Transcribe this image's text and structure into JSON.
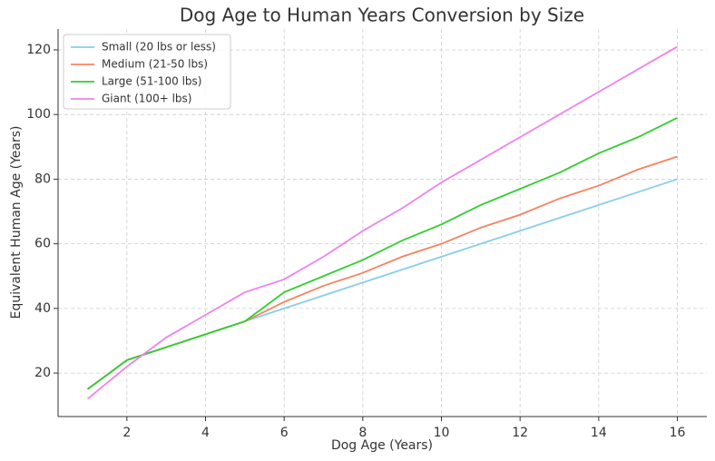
{
  "chart_data": {
    "type": "line",
    "title": "Dog Age to Human Years Conversion by Size",
    "x_label": "Dog Age (Years)",
    "y_label": "Equivalent Human Age (Years)",
    "x": [
      1,
      2,
      3,
      4,
      5,
      6,
      7,
      8,
      9,
      10,
      11,
      12,
      13,
      14,
      15,
      16
    ],
    "series": [
      {
        "name": "Small (20 lbs or less)",
        "color": "#87ceeb",
        "values": [
          15,
          24,
          28,
          32,
          36,
          40,
          44,
          48,
          52,
          56,
          60,
          64,
          68,
          72,
          76,
          80
        ]
      },
      {
        "name": "Medium (21-50 lbs)",
        "color": "#f4845f",
        "values": [
          15,
          24,
          28,
          32,
          36,
          42,
          47,
          51,
          56,
          60,
          65,
          69,
          74,
          78,
          83,
          87
        ]
      },
      {
        "name": "Large (51-100 lbs)",
        "color": "#32cd32",
        "values": [
          15,
          24,
          28,
          32,
          36,
          45,
          50,
          55,
          61,
          66,
          72,
          77,
          82,
          88,
          93,
          99
        ]
      },
      {
        "name": "Giant (100+ lbs)",
        "color": "#ee82ee",
        "values": [
          12,
          22,
          31,
          38,
          45,
          49,
          56,
          64,
          71,
          79,
          86,
          93,
          100,
          107,
          114,
          121
        ]
      }
    ],
    "xlim": [
      0.25,
      16.75
    ],
    "xticks": [
      2,
      4,
      6,
      8,
      10,
      12,
      14,
      16
    ],
    "ylim": [
      6.55,
      126.45
    ],
    "yticks": [
      20,
      40,
      60,
      80,
      100,
      120
    ],
    "grid": true,
    "legend": "upper-left"
  }
}
